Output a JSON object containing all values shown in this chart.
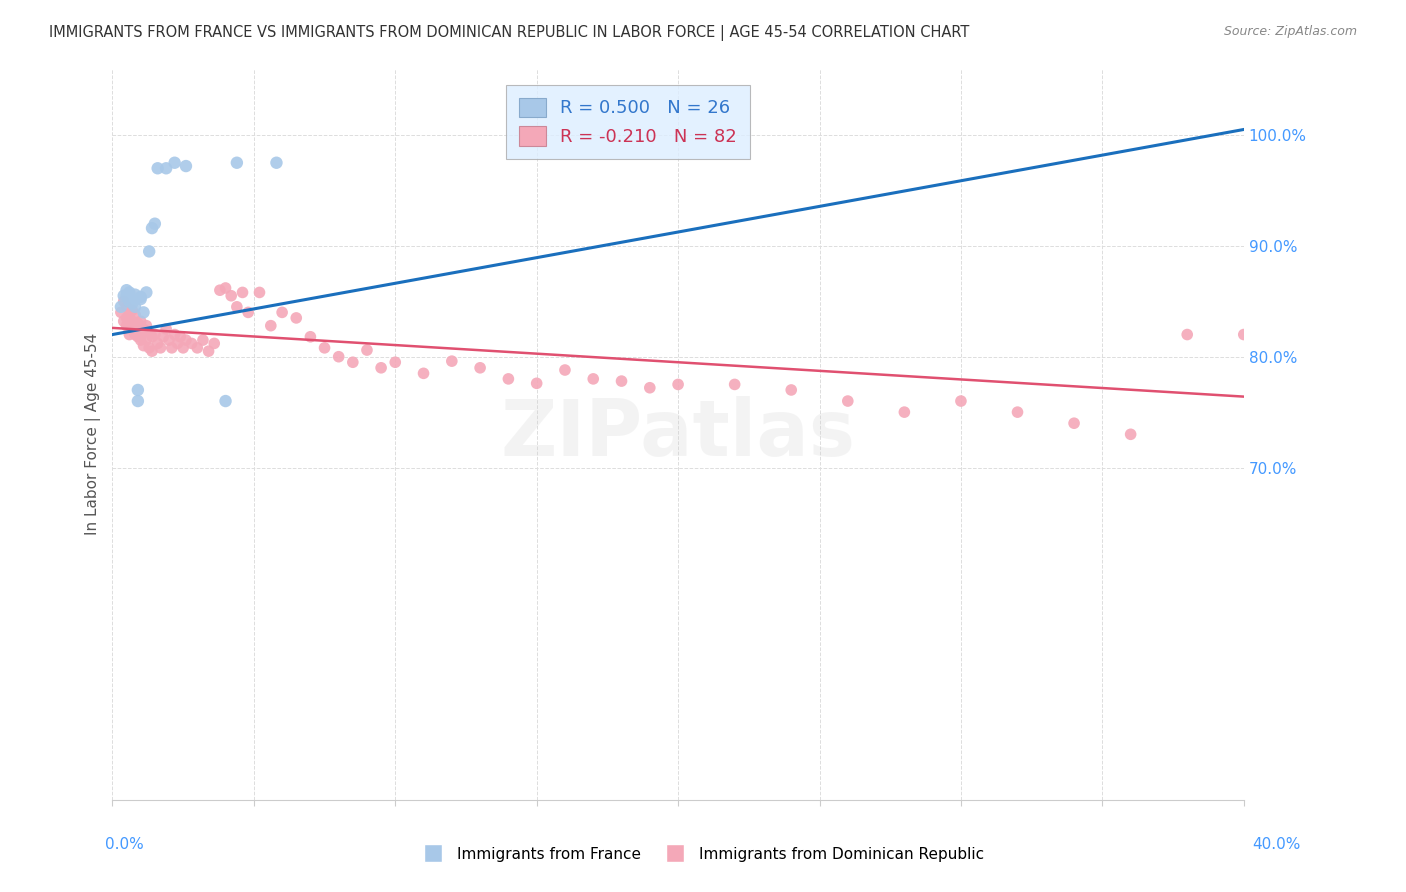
{
  "title": "IMMIGRANTS FROM FRANCE VS IMMIGRANTS FROM DOMINICAN REPUBLIC IN LABOR FORCE | AGE 45-54 CORRELATION CHART",
  "source": "Source: ZipAtlas.com",
  "ylabel": "In Labor Force | Age 45-54",
  "xlim": [
    0.0,
    0.4
  ],
  "ylim": [
    0.4,
    1.06
  ],
  "france_R": 0.5,
  "france_N": 26,
  "dr_R": -0.21,
  "dr_N": 82,
  "france_color": "#a8c8e8",
  "dr_color": "#f4a8b8",
  "trendline_france_color": "#1a6fbd",
  "trendline_dr_color": "#e05070",
  "legend_box_color": "#ddeeff",
  "watermark": "ZIPatlas",
  "france_x": [
    0.003,
    0.004,
    0.005,
    0.005,
    0.006,
    0.006,
    0.007,
    0.007,
    0.008,
    0.008,
    0.009,
    0.009,
    0.01,
    0.01,
    0.011,
    0.012,
    0.013,
    0.014,
    0.015,
    0.016,
    0.019,
    0.022,
    0.026,
    0.04,
    0.044,
    0.058
  ],
  "france_y": [
    0.845,
    0.855,
    0.855,
    0.86,
    0.85,
    0.858,
    0.848,
    0.852,
    0.845,
    0.856,
    0.76,
    0.77,
    0.852,
    0.854,
    0.84,
    0.858,
    0.895,
    0.916,
    0.92,
    0.97,
    0.97,
    0.975,
    0.972,
    0.76,
    0.975,
    0.975
  ],
  "dr_x": [
    0.003,
    0.004,
    0.004,
    0.005,
    0.005,
    0.005,
    0.006,
    0.006,
    0.006,
    0.007,
    0.007,
    0.007,
    0.008,
    0.008,
    0.008,
    0.009,
    0.009,
    0.01,
    0.01,
    0.01,
    0.011,
    0.011,
    0.012,
    0.012,
    0.013,
    0.013,
    0.014,
    0.014,
    0.015,
    0.016,
    0.017,
    0.018,
    0.019,
    0.02,
    0.021,
    0.022,
    0.023,
    0.024,
    0.025,
    0.026,
    0.028,
    0.03,
    0.032,
    0.034,
    0.036,
    0.038,
    0.04,
    0.042,
    0.044,
    0.046,
    0.048,
    0.052,
    0.056,
    0.06,
    0.065,
    0.07,
    0.075,
    0.08,
    0.085,
    0.09,
    0.095,
    0.1,
    0.11,
    0.12,
    0.13,
    0.14,
    0.15,
    0.16,
    0.17,
    0.18,
    0.19,
    0.2,
    0.22,
    0.24,
    0.26,
    0.28,
    0.3,
    0.32,
    0.34,
    0.36,
    0.38,
    0.4
  ],
  "dr_y": [
    0.84,
    0.832,
    0.85,
    0.828,
    0.835,
    0.845,
    0.83,
    0.838,
    0.82,
    0.832,
    0.825,
    0.842,
    0.828,
    0.838,
    0.82,
    0.83,
    0.818,
    0.832,
    0.82,
    0.815,
    0.825,
    0.81,
    0.828,
    0.815,
    0.822,
    0.808,
    0.818,
    0.805,
    0.82,
    0.812,
    0.808,
    0.818,
    0.825,
    0.815,
    0.808,
    0.82,
    0.812,
    0.818,
    0.808,
    0.815,
    0.812,
    0.808,
    0.815,
    0.805,
    0.812,
    0.86,
    0.862,
    0.855,
    0.845,
    0.858,
    0.84,
    0.858,
    0.828,
    0.84,
    0.835,
    0.818,
    0.808,
    0.8,
    0.795,
    0.806,
    0.79,
    0.795,
    0.785,
    0.796,
    0.79,
    0.78,
    0.776,
    0.788,
    0.78,
    0.778,
    0.772,
    0.775,
    0.775,
    0.77,
    0.76,
    0.75,
    0.76,
    0.75,
    0.74,
    0.73,
    0.82,
    0.82
  ],
  "france_trendline_x0": 0.0,
  "france_trendline_y0": 0.82,
  "france_trendline_x1": 0.4,
  "france_trendline_y1": 1.005,
  "dr_trendline_x0": 0.0,
  "dr_trendline_y0": 0.826,
  "dr_trendline_x1": 0.4,
  "dr_trendline_y1": 0.764,
  "background_color": "#ffffff",
  "grid_color": "#dddddd"
}
